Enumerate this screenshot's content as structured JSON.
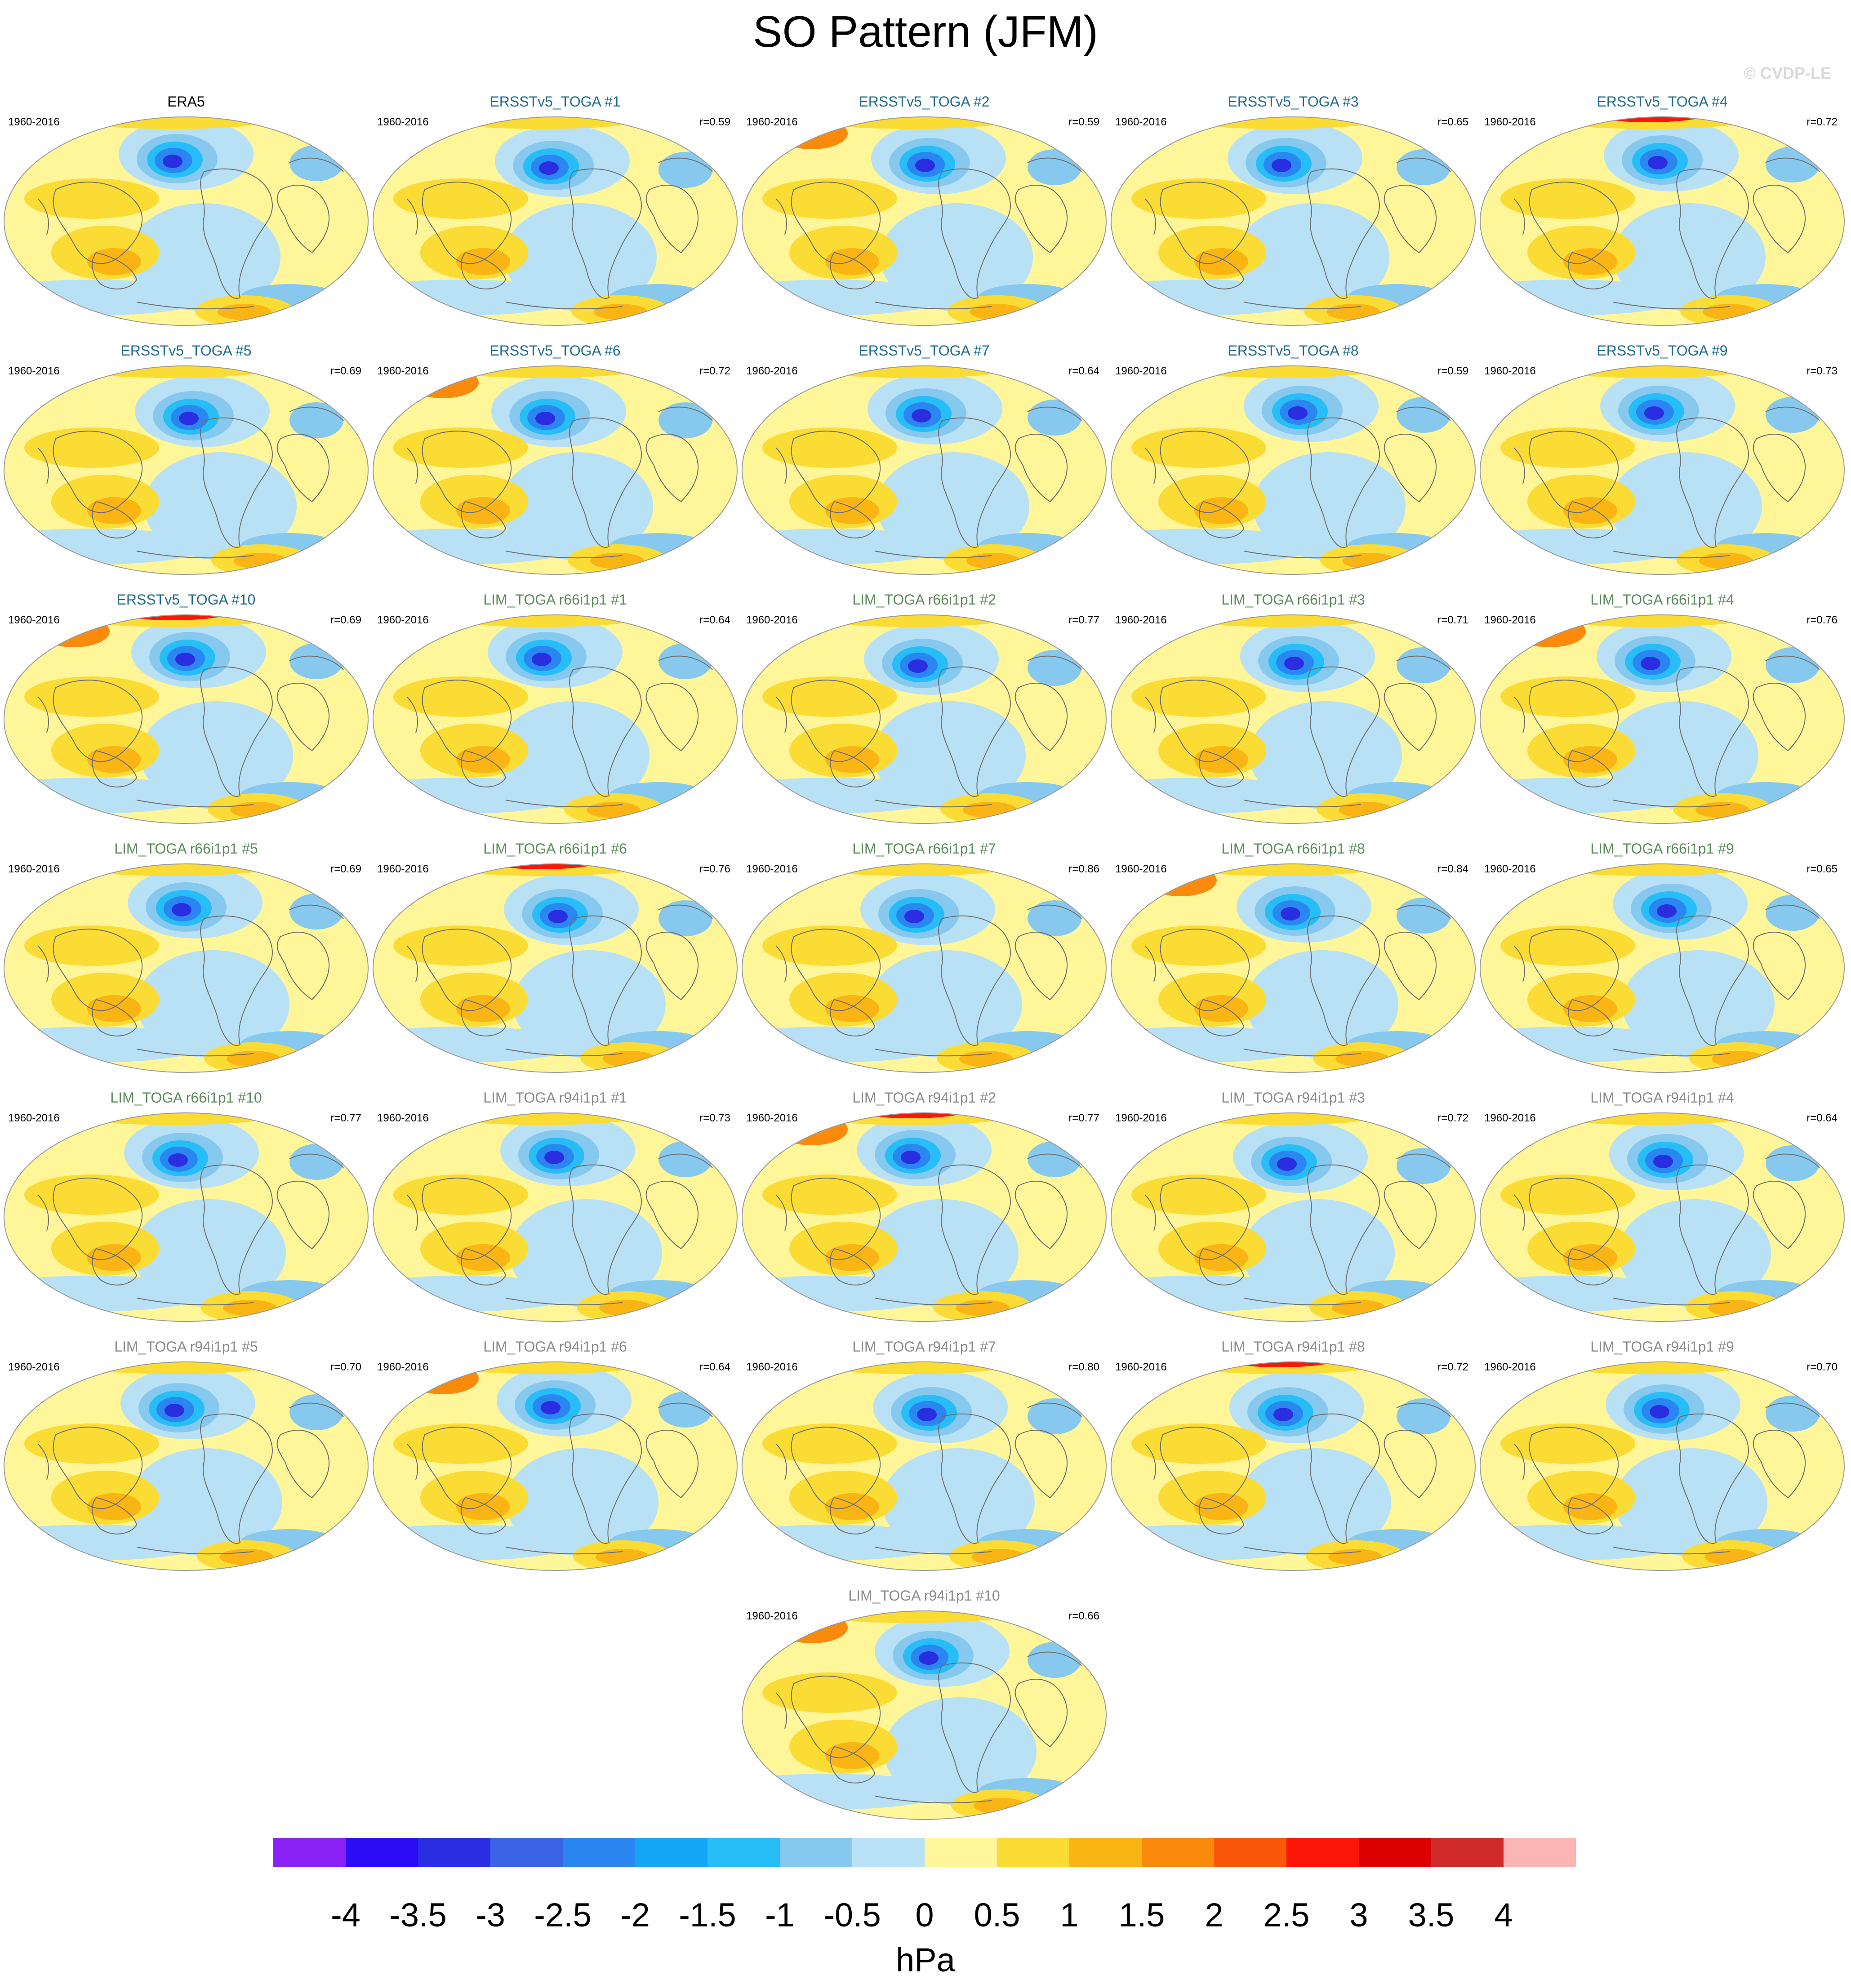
{
  "title": "SO Pattern (JFM)",
  "copyright": "© CVDP-LE",
  "period": "1960-2016",
  "colors": {
    "era5_title": "#000000",
    "ersst_title": "#1f6b8f",
    "lim_r66_title": "#5a8a5a",
    "lim_r94_title": "#8a8a8a",
    "coastline": "#6e6e6e"
  },
  "panels": [
    {
      "title": "ERA5",
      "r": "",
      "group": "era5"
    },
    {
      "title": "ERSSTv5_TOGA #1",
      "r": "r=0.59",
      "group": "ersst"
    },
    {
      "title": "ERSSTv5_TOGA #2",
      "r": "r=0.59",
      "group": "ersst"
    },
    {
      "title": "ERSSTv5_TOGA #3",
      "r": "r=0.65",
      "group": "ersst"
    },
    {
      "title": "ERSSTv5_TOGA #4",
      "r": "r=0.72",
      "group": "ersst"
    },
    {
      "title": "ERSSTv5_TOGA #5",
      "r": "r=0.69",
      "group": "ersst"
    },
    {
      "title": "ERSSTv5_TOGA #6",
      "r": "r=0.72",
      "group": "ersst"
    },
    {
      "title": "ERSSTv5_TOGA #7",
      "r": "r=0.64",
      "group": "ersst"
    },
    {
      "title": "ERSSTv5_TOGA #8",
      "r": "r=0.59",
      "group": "ersst"
    },
    {
      "title": "ERSSTv5_TOGA #9",
      "r": "r=0.73",
      "group": "ersst"
    },
    {
      "title": "ERSSTv5_TOGA #10",
      "r": "r=0.69",
      "group": "ersst"
    },
    {
      "title": "LIM_TOGA r66i1p1 #1",
      "r": "r=0.64",
      "group": "lim66"
    },
    {
      "title": "LIM_TOGA r66i1p1 #2",
      "r": "r=0.77",
      "group": "lim66"
    },
    {
      "title": "LIM_TOGA r66i1p1 #3",
      "r": "r=0.71",
      "group": "lim66"
    },
    {
      "title": "LIM_TOGA r66i1p1 #4",
      "r": "r=0.76",
      "group": "lim66"
    },
    {
      "title": "LIM_TOGA r66i1p1 #5",
      "r": "r=0.69",
      "group": "lim66"
    },
    {
      "title": "LIM_TOGA r66i1p1 #6",
      "r": "r=0.76",
      "group": "lim66"
    },
    {
      "title": "LIM_TOGA r66i1p1 #7",
      "r": "r=0.86",
      "group": "lim66"
    },
    {
      "title": "LIM_TOGA r66i1p1 #8",
      "r": "r=0.84",
      "group": "lim66"
    },
    {
      "title": "LIM_TOGA r66i1p1 #9",
      "r": "r=0.65",
      "group": "lim66"
    },
    {
      "title": "LIM_TOGA r66i1p1 #10",
      "r": "r=0.77",
      "group": "lim66"
    },
    {
      "title": "LIM_TOGA r94i1p1 #1",
      "r": "r=0.73",
      "group": "lim94"
    },
    {
      "title": "LIM_TOGA r94i1p1 #2",
      "r": "r=0.77",
      "group": "lim94"
    },
    {
      "title": "LIM_TOGA r94i1p1 #3",
      "r": "r=0.72",
      "group": "lim94"
    },
    {
      "title": "LIM_TOGA r94i1p1 #4",
      "r": "r=0.64",
      "group": "lim94"
    },
    {
      "title": "LIM_TOGA r94i1p1 #5",
      "r": "r=0.70",
      "group": "lim94"
    },
    {
      "title": "LIM_TOGA r94i1p1 #6",
      "r": "r=0.64",
      "group": "lim94"
    },
    {
      "title": "LIM_TOGA r94i1p1 #7",
      "r": "r=0.80",
      "group": "lim94"
    },
    {
      "title": "LIM_TOGA r94i1p1 #8",
      "r": "r=0.72",
      "group": "lim94"
    },
    {
      "title": "LIM_TOGA r94i1p1 #9",
      "r": "r=0.70",
      "group": "lim94"
    },
    {
      "title": "LIM_TOGA r94i1p1 #10",
      "r": "r=0.66",
      "group": "lim94"
    }
  ],
  "colorbar": {
    "colors": [
      "#8a22f5",
      "#2b0cf5",
      "#2a2ee0",
      "#3c63e6",
      "#2a87f2",
      "#13a6f7",
      "#27bef7",
      "#87c9ee",
      "#b9e1f6",
      "#fff69a",
      "#fbdc35",
      "#fab514",
      "#fa8a0b",
      "#fa5708",
      "#fb1708",
      "#db0101",
      "#d12a2a",
      "#fbb5b5"
    ],
    "labels": [
      "-4",
      "-3.5",
      "-3",
      "-2.5",
      "-2",
      "-1.5",
      "-1",
      "-0.5",
      "0",
      "0.5",
      "1",
      "1.5",
      "2",
      "2.5",
      "3",
      "3.5",
      "4"
    ],
    "units": "hPa"
  }
}
